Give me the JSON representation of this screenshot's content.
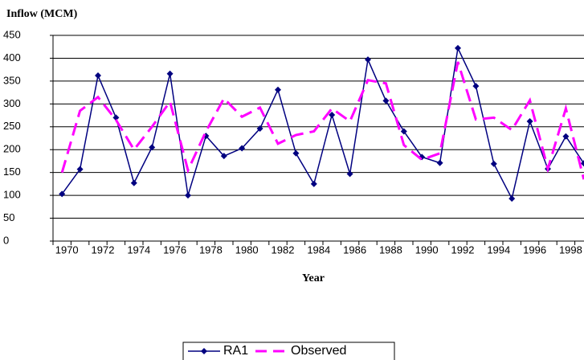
{
  "chart_data": {
    "type": "line",
    "y_label": "Inflow (MCM)",
    "x_label": "Year",
    "categories": [
      "1970",
      null,
      "1972",
      null,
      "1974",
      null,
      "1976",
      null,
      "1978",
      null,
      "1980",
      null,
      "1982",
      null,
      "1984",
      null,
      "1986",
      null,
      "1988",
      null,
      "1990",
      null,
      "1992",
      null,
      "1994",
      null,
      "1996",
      null,
      "1998",
      null
    ],
    "series": [
      {
        "name": "RA1",
        "color": "#000080",
        "style": "solid-diamond",
        "values": [
          103,
          157,
          362,
          270,
          127,
          205,
          366,
          100,
          230,
          186,
          203,
          246,
          331,
          192,
          125,
          276,
          147,
          397,
          307,
          240,
          184,
          171,
          422,
          339,
          169,
          93,
          262,
          158,
          229,
          170
        ]
      },
      {
        "name": "Observed",
        "color": "#ff00ff",
        "style": "dashed",
        "values": [
          150,
          285,
          315,
          265,
          200,
          250,
          305,
          155,
          240,
          312,
          272,
          292,
          213,
          232,
          240,
          290,
          262,
          352,
          345,
          210,
          178,
          192,
          392,
          266,
          270,
          243,
          308,
          158,
          290,
          135
        ]
      }
    ],
    "ylim": [
      0,
      450
    ],
    "yticks": [
      0,
      50,
      100,
      150,
      200,
      250,
      300,
      350,
      400,
      450
    ],
    "grid": true,
    "legend": "bottom"
  }
}
